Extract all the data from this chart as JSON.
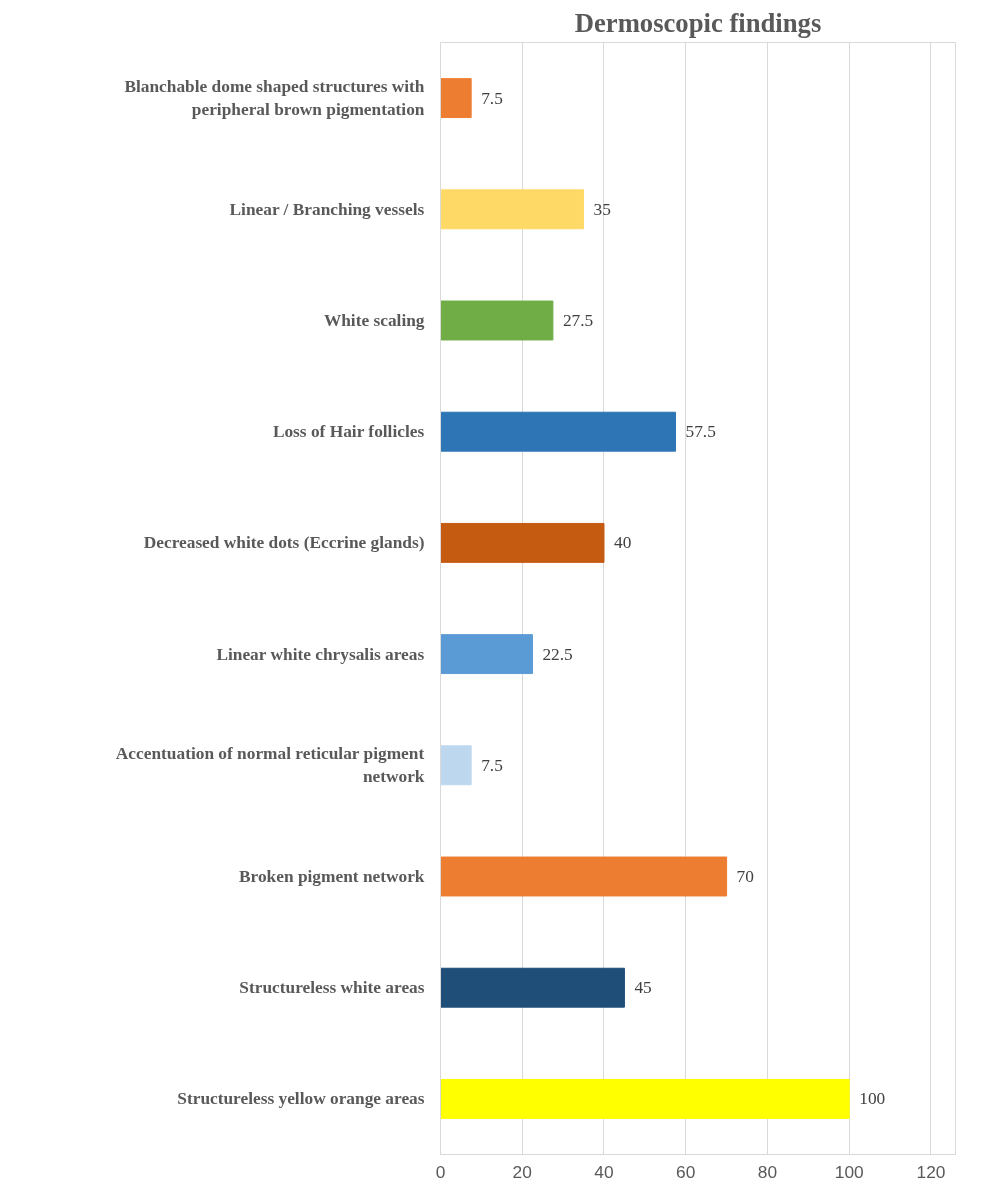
{
  "chart_data": {
    "type": "bar",
    "orientation": "horizontal",
    "title": "Dermoscopic findings",
    "categories": [
      "Blanchable dome shaped structures with peripheral brown pigmentation",
      "Linear / Branching vessels",
      "White scaling",
      "Loss of Hair follicles",
      "Decreased white dots (Eccrine glands)",
      "Linear white chrysalis areas",
      "Accentuation of normal reticular pigment network",
      "Broken pigment network",
      "Structureless white areas",
      "Structureless yellow orange areas"
    ],
    "values": [
      7.5,
      35,
      27.5,
      57.5,
      40,
      22.5,
      7.5,
      70,
      45,
      100
    ],
    "colors": [
      "#ed7d31",
      "#ffd966",
      "#70ad47",
      "#2e75b6",
      "#c55a11",
      "#5b9bd5",
      "#bdd7ee",
      "#ed7d31",
      "#1f4e79",
      "#ffff00"
    ],
    "xlim": [
      0,
      126
    ],
    "xticks": [
      0,
      20,
      40,
      60,
      80,
      100,
      120
    ],
    "grid": "x",
    "data_labels": true
  }
}
